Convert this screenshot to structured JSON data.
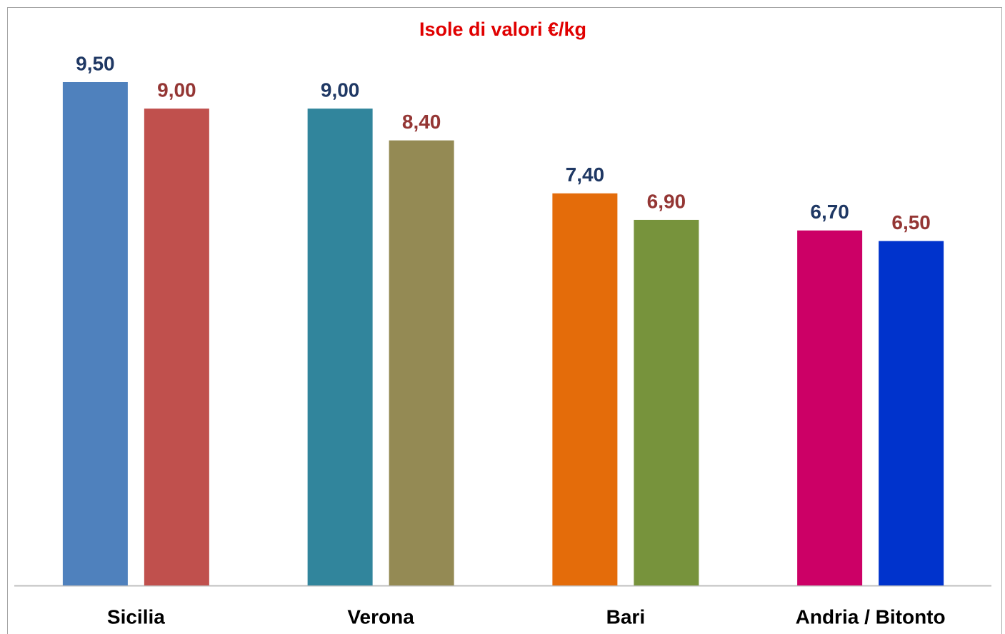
{
  "chart_data": {
    "type": "bar",
    "title": "Isole di valori €/kg",
    "categories": [
      "Sicilia",
      "Verona",
      "Bari",
      "Andria / Bitonto"
    ],
    "series": [
      {
        "colors": [
          "#4f81bd",
          "#31859c",
          "#e46c0a",
          "#cc0066"
        ],
        "label_color": "#1f3864",
        "values": [
          9.5,
          9.0,
          7.4,
          6.7
        ],
        "value_labels": [
          "9,50",
          "9,00",
          "7,40",
          "6,70"
        ]
      },
      {
        "colors": [
          "#c0504d",
          "#948a54",
          "#77933c",
          "#0033cc"
        ],
        "label_color": "#943634",
        "values": [
          9.0,
          8.4,
          6.9,
          6.5
        ],
        "value_labels": [
          "9,00",
          "8,40",
          "6,90",
          "6,50"
        ]
      }
    ]
  }
}
